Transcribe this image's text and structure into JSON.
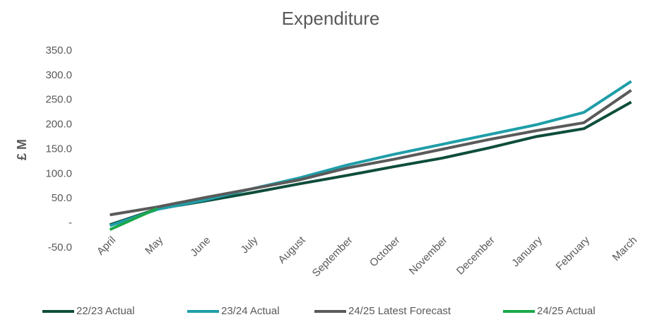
{
  "chart_data": {
    "type": "line",
    "title": "Expenditure",
    "y_label": "£ M",
    "categories": [
      "April",
      "May",
      "June",
      "July",
      "August",
      "September",
      "October",
      "November",
      "December",
      "January",
      "February",
      "March"
    ],
    "series": [
      {
        "name": "22/23  Actual",
        "color": "#0e4d3b",
        "values": [
          -3,
          29,
          45,
          62,
          80,
          97,
          115,
          132,
          153,
          176,
          192,
          246
        ]
      },
      {
        "name": "23/24 Actual",
        "color": "#1f9ea8",
        "values": [
          -5,
          28,
          47,
          70,
          92,
          118,
          140,
          160,
          180,
          200,
          225,
          288
        ]
      },
      {
        "name": "24/25 Latest Forecast",
        "color": "#5a5a5a",
        "values": [
          17,
          33,
          52,
          70,
          88,
          112,
          130,
          150,
          170,
          188,
          204,
          270
        ]
      },
      {
        "name": "24/25 Actual",
        "color": "#1ca84b",
        "values": [
          -13,
          30,
          null,
          null,
          null,
          null,
          null,
          null,
          null,
          null,
          null,
          null
        ]
      }
    ],
    "ylim": [
      -50,
      350
    ],
    "yticks": [
      {
        "value": -50,
        "label": "-50.0"
      },
      {
        "value": 0,
        "label": "-"
      },
      {
        "value": 50,
        "label": "50.0"
      },
      {
        "value": 100,
        "label": "100.0"
      },
      {
        "value": 150,
        "label": "150.0"
      },
      {
        "value": 200,
        "label": "200.0"
      },
      {
        "value": 250,
        "label": "250.0"
      },
      {
        "value": 300,
        "label": "300.0"
      },
      {
        "value": 350,
        "label": "350.0"
      }
    ],
    "legend": "bottom"
  }
}
